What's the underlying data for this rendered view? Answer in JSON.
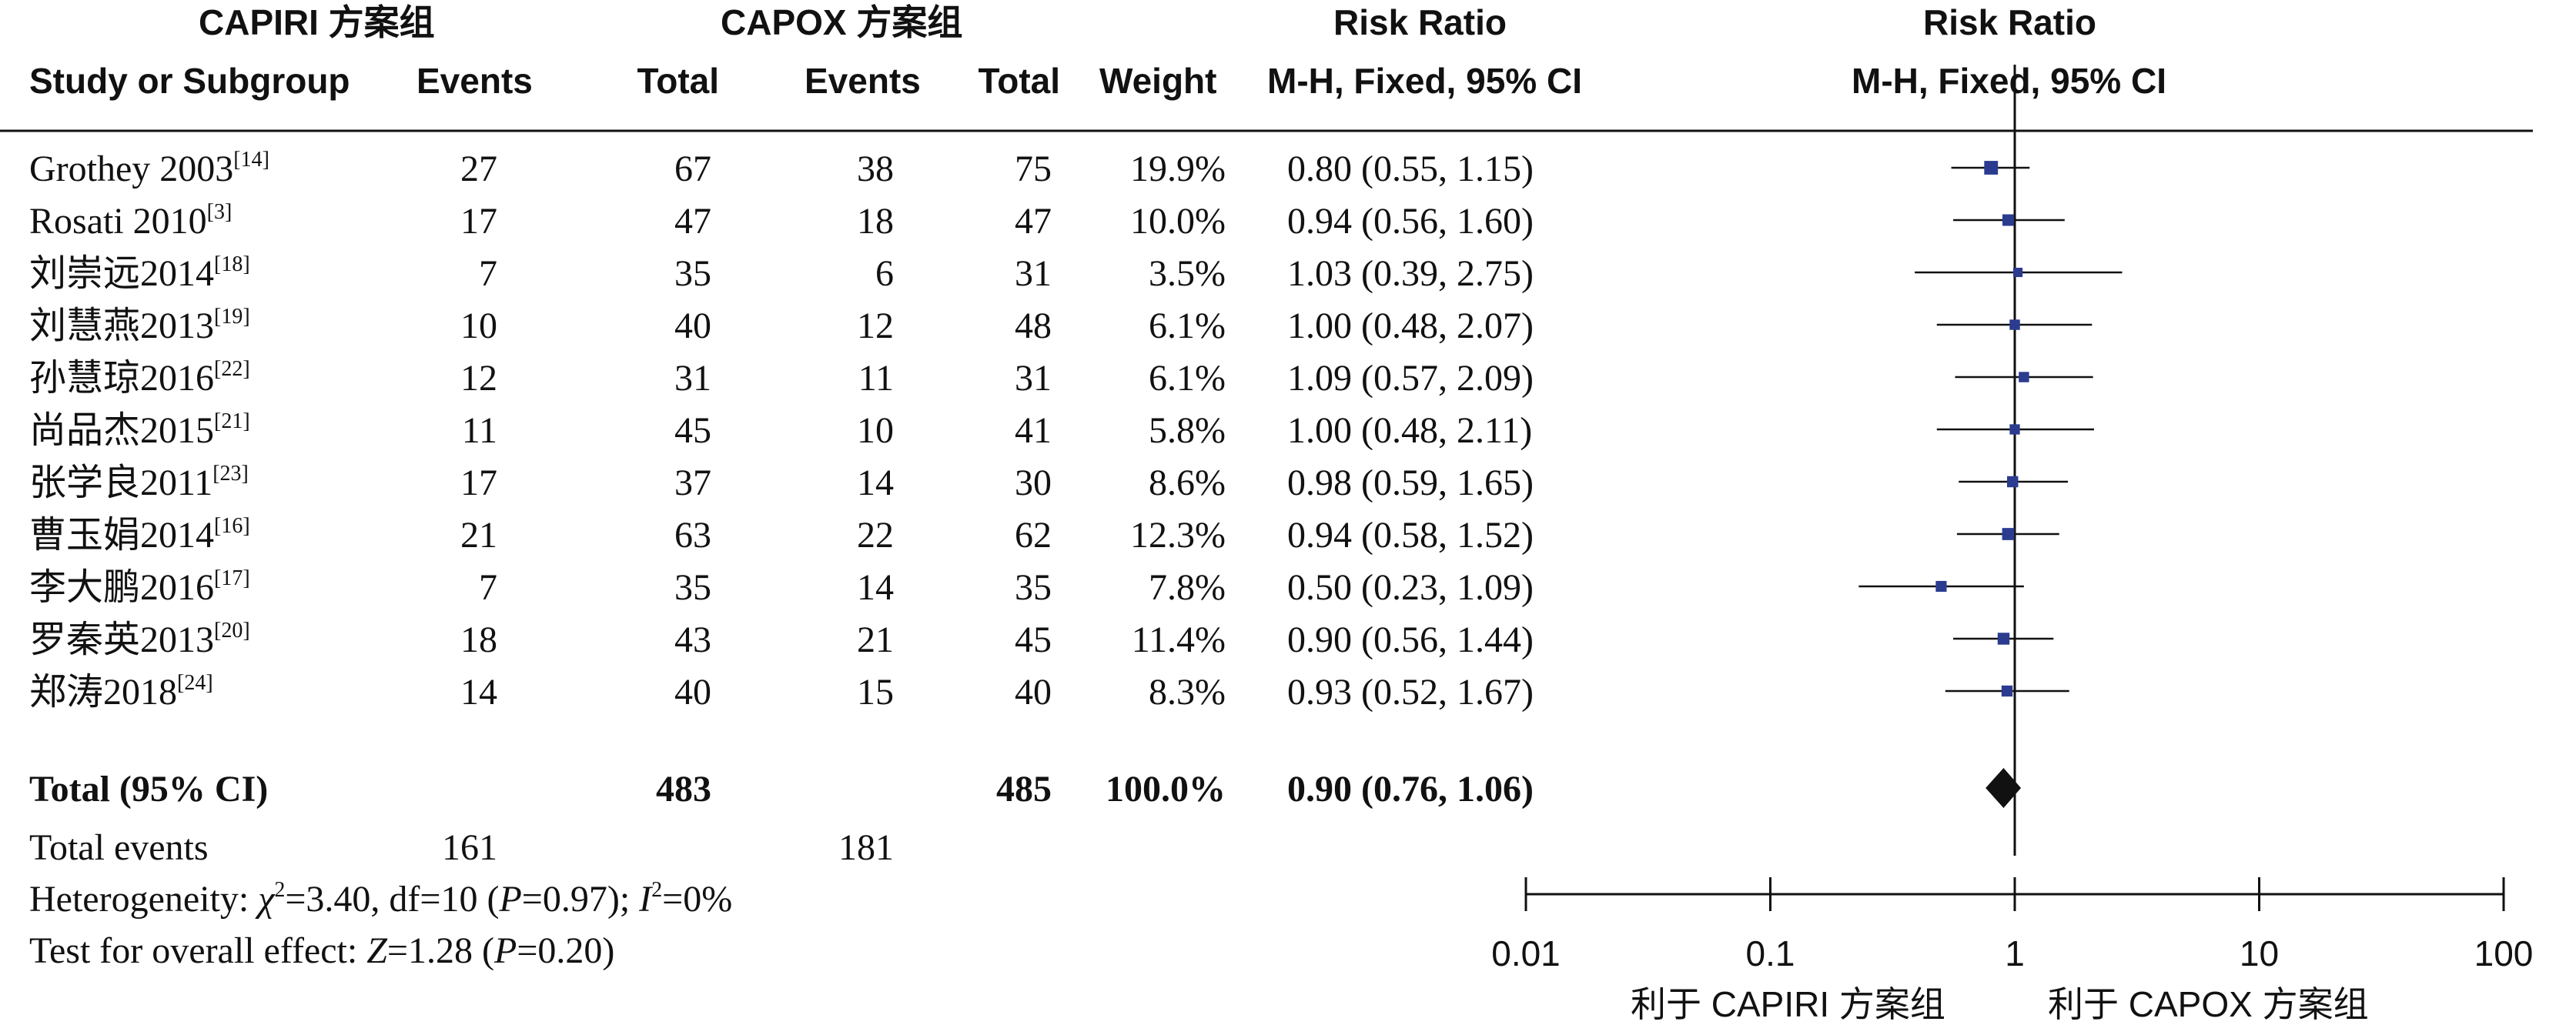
{
  "headers": {
    "group1": "CAPIRI 方案组",
    "group2": "CAPOX 方案组",
    "rr_text": "Risk Ratio",
    "rr_plot": "Risk Ratio",
    "study": "Study or Subgroup",
    "events1": "Events",
    "total1": "Total",
    "events2": "Events",
    "total2": "Total",
    "weight": "Weight",
    "method_text": "M-H, Fixed, 95% CI",
    "method_plot": "M-H, Fixed, 95% CI"
  },
  "rows": [
    {
      "name": "Grothey 2003",
      "ref": "[14]",
      "e1": "27",
      "t1": "67",
      "e2": "38",
      "t2": "75",
      "weight": "19.9%",
      "ci": "0.80 (0.55, 1.15)"
    },
    {
      "name": "Rosati 2010",
      "ref": "[3]",
      "e1": "17",
      "t1": "47",
      "e2": "18",
      "t2": "47",
      "weight": "10.0%",
      "ci": "0.94 (0.56, 1.60)"
    },
    {
      "name": "刘崇远2014",
      "ref": "[18]",
      "e1": "7",
      "t1": "35",
      "e2": "6",
      "t2": "31",
      "weight": "3.5%",
      "ci": "1.03 (0.39, 2.75)"
    },
    {
      "name": "刘慧燕2013",
      "ref": "[19]",
      "e1": "10",
      "t1": "40",
      "e2": "12",
      "t2": "48",
      "weight": "6.1%",
      "ci": "1.00 (0.48, 2.07)"
    },
    {
      "name": "孙慧琼2016",
      "ref": "[22]",
      "e1": "12",
      "t1": "31",
      "e2": "11",
      "t2": "31",
      "weight": "6.1%",
      "ci": "1.09 (0.57, 2.09)"
    },
    {
      "name": "尚品杰2015",
      "ref": "[21]",
      "e1": "11",
      "t1": "45",
      "e2": "10",
      "t2": "41",
      "weight": "5.8%",
      "ci": "1.00 (0.48, 2.11)"
    },
    {
      "name": "张学良2011",
      "ref": "[23]",
      "e1": "17",
      "t1": "37",
      "e2": "14",
      "t2": "30",
      "weight": "8.6%",
      "ci": "0.98 (0.59, 1.65)"
    },
    {
      "name": "曹玉娟2014",
      "ref": "[16]",
      "e1": "21",
      "t1": "63",
      "e2": "22",
      "t2": "62",
      "weight": "12.3%",
      "ci": "0.94 (0.58, 1.52)"
    },
    {
      "name": "李大鹏2016",
      "ref": "[17]",
      "e1": "7",
      "t1": "35",
      "e2": "14",
      "t2": "35",
      "weight": "7.8%",
      "ci": "0.50 (0.23, 1.09)"
    },
    {
      "name": "罗秦英2013",
      "ref": "[20]",
      "e1": "18",
      "t1": "43",
      "e2": "21",
      "t2": "45",
      "weight": "11.4%",
      "ci": "0.90 (0.56, 1.44)"
    },
    {
      "name": "郑涛2018",
      "ref": "[24]",
      "e1": "14",
      "t1": "40",
      "e2": "15",
      "t2": "40",
      "weight": "8.3%",
      "ci": "0.93 (0.52, 1.67)"
    }
  ],
  "total": {
    "label": "Total (95% CI)",
    "t1": "483",
    "t2": "485",
    "weight": "100.0%",
    "ci": "0.90 (0.76, 1.06)"
  },
  "total_events": {
    "label": "Total events",
    "e1": "161",
    "e2": "181"
  },
  "heterogeneity": {
    "prefix": "Heterogeneity: ",
    "chi_symbol": "χ",
    "chi_exp": "2",
    "chi_val": "=3.40, df=10 (",
    "p_sym": "P",
    "p_val": "=0.97); ",
    "i_sym": "I",
    "i_exp": "2",
    "i_val": "=0%"
  },
  "overall": {
    "prefix": "Test for overall effect: ",
    "z_sym": "Z",
    "z_val": "=1.28 (",
    "p_sym": "P",
    "p_val": "=0.20)"
  },
  "axis": {
    "favours_left": "利于 CAPIRI 方案组",
    "favours_right": "利于 CAPOX 方案组"
  },
  "colors": {
    "marker": "#2b3b8f",
    "line": "#111111",
    "diamond": "#111111"
  },
  "chart_data": {
    "type": "forest",
    "scale": "log",
    "xlim": [
      0.01,
      100
    ],
    "ticks": [
      {
        "value": 0.01,
        "label": "0.01"
      },
      {
        "value": 0.1,
        "label": "0.1"
      },
      {
        "value": 1,
        "label": "1"
      },
      {
        "value": 10,
        "label": "10"
      },
      {
        "value": 100,
        "label": "100"
      }
    ],
    "null_value": 1,
    "studies": [
      {
        "rr": 0.8,
        "lo": 0.55,
        "hi": 1.15,
        "weight": 19.9
      },
      {
        "rr": 0.94,
        "lo": 0.56,
        "hi": 1.6,
        "weight": 10.0
      },
      {
        "rr": 1.03,
        "lo": 0.39,
        "hi": 2.75,
        "weight": 3.5
      },
      {
        "rr": 1.0,
        "lo": 0.48,
        "hi": 2.07,
        "weight": 6.1
      },
      {
        "rr": 1.09,
        "lo": 0.57,
        "hi": 2.09,
        "weight": 6.1
      },
      {
        "rr": 1.0,
        "lo": 0.48,
        "hi": 2.11,
        "weight": 5.8
      },
      {
        "rr": 0.98,
        "lo": 0.59,
        "hi": 1.65,
        "weight": 8.6
      },
      {
        "rr": 0.94,
        "lo": 0.58,
        "hi": 1.52,
        "weight": 12.3
      },
      {
        "rr": 0.5,
        "lo": 0.23,
        "hi": 1.09,
        "weight": 7.8
      },
      {
        "rr": 0.9,
        "lo": 0.56,
        "hi": 1.44,
        "weight": 11.4
      },
      {
        "rr": 0.93,
        "lo": 0.52,
        "hi": 1.67,
        "weight": 8.3
      }
    ],
    "pooled": {
      "rr": 0.9,
      "lo": 0.76,
      "hi": 1.06
    }
  }
}
